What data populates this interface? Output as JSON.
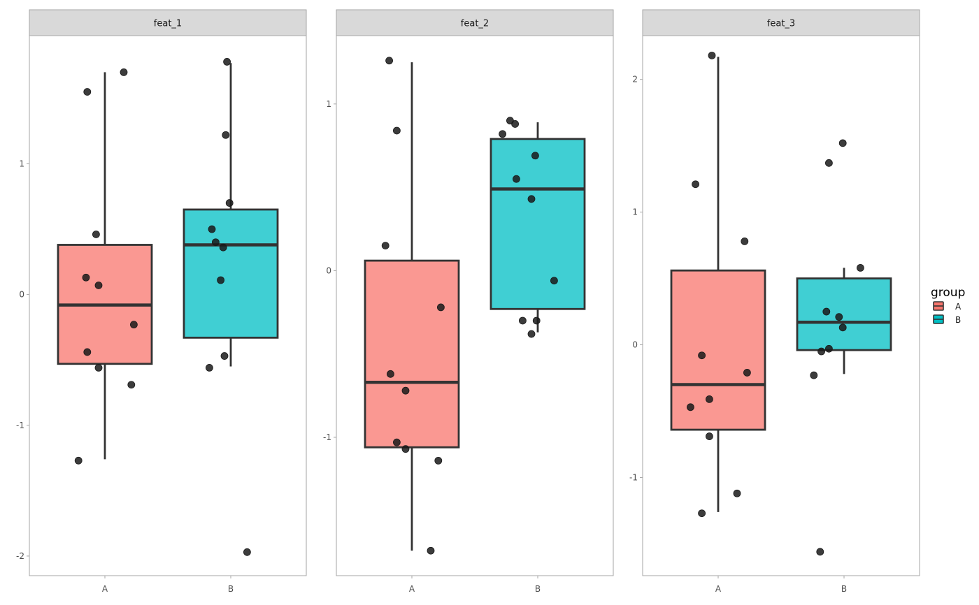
{
  "chart_data": {
    "type": "box",
    "facet_labels": [
      "feat_1",
      "feat_2",
      "feat_3"
    ],
    "categories": [
      "A",
      "B"
    ],
    "legend": {
      "title": "group",
      "entries": [
        {
          "label": "A",
          "color": "#F8766D"
        },
        {
          "label": "B",
          "color": "#00BFC4"
        }
      ],
      "placement": "right"
    },
    "colors": {
      "A": "#F8766D",
      "B": "#00BFC4",
      "outline": "#333333",
      "point": "#1a1a1a"
    },
    "panels": [
      {
        "name": "feat_1",
        "ylim": [
          -2.15,
          1.98
        ],
        "yticks": [
          -2,
          -1,
          0,
          1
        ],
        "ytick_labels": [
          "-2",
          "-1",
          "0",
          "1"
        ],
        "boxes": [
          {
            "group": "A",
            "whisker_low": -1.26,
            "q1": -0.53,
            "median": -0.08,
            "q3": 0.38,
            "whisker_high": 1.7
          },
          {
            "group": "B",
            "whisker_low": -0.55,
            "q1": -0.33,
            "median": 0.38,
            "q3": 0.65,
            "whisker_high": 1.77
          }
        ],
        "points": [
          {
            "group": "A",
            "x": 0.86,
            "y": 1.55
          },
          {
            "group": "A",
            "x": 1.15,
            "y": 1.7
          },
          {
            "group": "A",
            "x": 0.93,
            "y": 0.46
          },
          {
            "group": "A",
            "x": 0.85,
            "y": 0.13
          },
          {
            "group": "A",
            "x": 0.95,
            "y": 0.07
          },
          {
            "group": "A",
            "x": 1.23,
            "y": -0.23
          },
          {
            "group": "A",
            "x": 0.86,
            "y": -0.44
          },
          {
            "group": "A",
            "x": 0.95,
            "y": -0.56
          },
          {
            "group": "A",
            "x": 1.21,
            "y": -0.69
          },
          {
            "group": "A",
            "x": 0.79,
            "y": -1.27
          },
          {
            "group": "B",
            "x": 1.97,
            "y": 1.78
          },
          {
            "group": "B",
            "x": 1.96,
            "y": 1.22
          },
          {
            "group": "B",
            "x": 1.99,
            "y": 0.7
          },
          {
            "group": "B",
            "x": 1.85,
            "y": 0.5
          },
          {
            "group": "B",
            "x": 1.88,
            "y": 0.4
          },
          {
            "group": "B",
            "x": 1.94,
            "y": 0.36
          },
          {
            "group": "B",
            "x": 1.92,
            "y": 0.11
          },
          {
            "group": "B",
            "x": 1.83,
            "y": -0.56
          },
          {
            "group": "B",
            "x": 1.95,
            "y": -0.47
          },
          {
            "group": "B",
            "x": 2.13,
            "y": -1.97
          }
        ]
      },
      {
        "name": "feat_2",
        "ylim": [
          -1.83,
          1.41
        ],
        "yticks": [
          -1,
          0,
          1
        ],
        "ytick_labels": [
          "-1",
          "0",
          "1"
        ],
        "boxes": [
          {
            "group": "A",
            "whisker_low": -1.68,
            "q1": -1.06,
            "median": -0.67,
            "q3": 0.06,
            "whisker_high": 1.25
          },
          {
            "group": "B",
            "whisker_low": -0.37,
            "q1": -0.23,
            "median": 0.49,
            "q3": 0.79,
            "whisker_high": 0.89
          }
        ],
        "points": [
          {
            "group": "A",
            "x": 0.82,
            "y": 1.26
          },
          {
            "group": "A",
            "x": 0.88,
            "y": 0.84
          },
          {
            "group": "A",
            "x": 0.79,
            "y": 0.15
          },
          {
            "group": "A",
            "x": 1.23,
            "y": -0.22
          },
          {
            "group": "A",
            "x": 0.83,
            "y": -0.62
          },
          {
            "group": "A",
            "x": 0.95,
            "y": -0.72
          },
          {
            "group": "A",
            "x": 0.88,
            "y": -1.03
          },
          {
            "group": "A",
            "x": 0.95,
            "y": -1.07
          },
          {
            "group": "A",
            "x": 1.21,
            "y": -1.14
          },
          {
            "group": "A",
            "x": 1.15,
            "y": -1.68
          },
          {
            "group": "B",
            "x": 1.78,
            "y": 0.9
          },
          {
            "group": "B",
            "x": 1.82,
            "y": 0.88
          },
          {
            "group": "B",
            "x": 1.72,
            "y": 0.82
          },
          {
            "group": "B",
            "x": 1.98,
            "y": 0.69
          },
          {
            "group": "B",
            "x": 1.83,
            "y": 0.55
          },
          {
            "group": "B",
            "x": 1.95,
            "y": 0.43
          },
          {
            "group": "B",
            "x": 2.13,
            "y": -0.06
          },
          {
            "group": "B",
            "x": 1.88,
            "y": -0.3
          },
          {
            "group": "B",
            "x": 1.99,
            "y": -0.3
          },
          {
            "group": "B",
            "x": 1.95,
            "y": -0.38
          }
        ]
      },
      {
        "name": "feat_3",
        "ylim": [
          -1.74,
          2.33
        ],
        "yticks": [
          -1,
          0,
          1,
          2
        ],
        "ytick_labels": [
          "-1",
          "0",
          "1",
          "2"
        ],
        "boxes": [
          {
            "group": "A",
            "whisker_low": -1.26,
            "q1": -0.64,
            "median": -0.3,
            "q3": 0.56,
            "whisker_high": 2.17
          },
          {
            "group": "B",
            "whisker_low": -0.22,
            "q1": -0.04,
            "median": 0.17,
            "q3": 0.5,
            "whisker_high": 0.58
          }
        ],
        "points": [
          {
            "group": "A",
            "x": 0.95,
            "y": 2.18
          },
          {
            "group": "A",
            "x": 0.82,
            "y": 1.21
          },
          {
            "group": "A",
            "x": 1.21,
            "y": 0.78
          },
          {
            "group": "A",
            "x": 0.87,
            "y": -0.08
          },
          {
            "group": "A",
            "x": 1.23,
            "y": -0.21
          },
          {
            "group": "A",
            "x": 0.93,
            "y": -0.41
          },
          {
            "group": "A",
            "x": 0.78,
            "y": -0.47
          },
          {
            "group": "A",
            "x": 0.93,
            "y": -0.69
          },
          {
            "group": "A",
            "x": 1.15,
            "y": -1.12
          },
          {
            "group": "A",
            "x": 0.87,
            "y": -1.27
          },
          {
            "group": "B",
            "x": 1.99,
            "y": 1.52
          },
          {
            "group": "B",
            "x": 1.88,
            "y": 1.37
          },
          {
            "group": "B",
            "x": 2.13,
            "y": 0.58
          },
          {
            "group": "B",
            "x": 1.86,
            "y": 0.25
          },
          {
            "group": "B",
            "x": 1.96,
            "y": 0.21
          },
          {
            "group": "B",
            "x": 1.99,
            "y": 0.13
          },
          {
            "group": "B",
            "x": 1.88,
            "y": -0.03
          },
          {
            "group": "B",
            "x": 1.82,
            "y": -0.05
          },
          {
            "group": "B",
            "x": 1.76,
            "y": -0.23
          },
          {
            "group": "B",
            "x": 1.81,
            "y": -1.56
          }
        ]
      }
    ]
  }
}
